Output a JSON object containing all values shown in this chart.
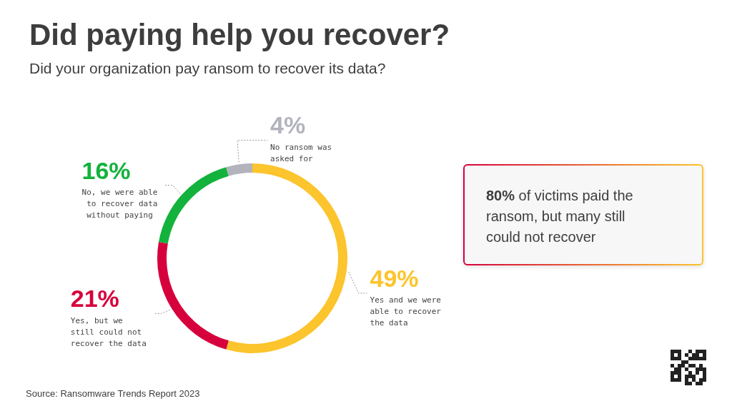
{
  "chart_data": {
    "type": "donut",
    "title": "Did paying help you recover?",
    "subtitle": "Did your organization pay ransom to recover its data?",
    "categories": [
      "Yes and we were able to recover the data",
      "Yes, but we still could not recover the data",
      "No, we were able to recover data without paying",
      "No ransom was asked for"
    ],
    "values": [
      49,
      21,
      16,
      4
    ],
    "colors": [
      "#fcc42d",
      "#d6003c",
      "#13b23c",
      "#b3b3bd"
    ],
    "value_labels": [
      "49%",
      "21%",
      "16%",
      "4%"
    ],
    "annotations": [
      "80% of victims paid the ransom, but many still could not recover",
      "Source: Ransomware Trends Report 2023"
    ]
  }
}
